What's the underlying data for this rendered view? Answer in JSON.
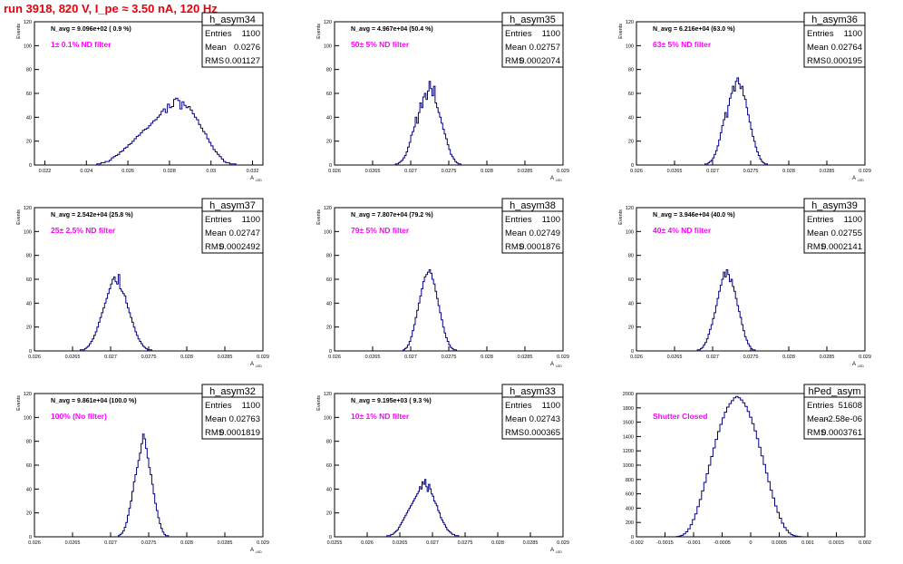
{
  "run_title": "run 3918,   820 V, I_pe ≈ 3.50 nA, 120 Hz",
  "style": {
    "title_color": "#e8000c",
    "filter_label_color": "#ff00ff",
    "histogram_color": "#00007f",
    "axis_color": "#000000"
  },
  "chart_data": [
    {
      "type": "histogram",
      "name": "h_asym34",
      "stats": {
        "entries_label": "Entries",
        "entries": "1100",
        "mean_label": "Mean",
        "mean": "0.0276",
        "rms_label": "RMS",
        "rms": "0.001127"
      },
      "navg_text": "N_avg = 9.096e+02 ( 0.9 %)",
      "filter_text": "1± 0.1% ND filter",
      "xlabel": "A",
      "xlabel_sub": "LED",
      "ylabel": "Events",
      "xlim": [
        0.0215,
        0.0325
      ],
      "ylim": [
        0,
        120
      ],
      "xticks": [
        "0.022",
        "0.024",
        "0.026",
        "0.028",
        "0.03",
        "0.032"
      ],
      "xtick_values": [
        0.022,
        0.024,
        0.026,
        0.028,
        0.03,
        0.032
      ],
      "yticks": [
        0,
        20,
        40,
        60,
        80,
        100,
        120
      ],
      "bins": {
        "start": 0.0245,
        "width": 0.0001,
        "counts": [
          1,
          1,
          2,
          2,
          3,
          3,
          4,
          6,
          7,
          8,
          9,
          11,
          12,
          14,
          15,
          17,
          18,
          20,
          22,
          24,
          25,
          27,
          29,
          30,
          31,
          33,
          35,
          37,
          38,
          40,
          42,
          45,
          47,
          44,
          51,
          48,
          49,
          55,
          56,
          54,
          47,
          53,
          50,
          48,
          49,
          46,
          43,
          40,
          38,
          34,
          31,
          28,
          26,
          22,
          19,
          16,
          13,
          11,
          9,
          7,
          5,
          3,
          2,
          2,
          1,
          1,
          1
        ]
      }
    },
    {
      "type": "histogram",
      "name": "h_asym35",
      "stats": {
        "entries_label": "Entries",
        "entries": "1100",
        "mean_label": "Mean",
        "mean": "0.02757",
        "rms_label": "RMS",
        "rms": "0.0002074"
      },
      "navg_text": "N_avg = 4.967e+04 (50.4 %)",
      "filter_text": "50± 5% ND filter",
      "xlabel": "A",
      "xlabel_sub": "LED",
      "ylabel": "Events",
      "xlim": [
        0.026,
        0.029
      ],
      "ylim": [
        0,
        120
      ],
      "xticks": [
        "0.026",
        "0.0265",
        "0.027",
        "0.0275",
        "0.028",
        "0.0285",
        "0.029"
      ],
      "xtick_values": [
        0.026,
        0.0265,
        0.027,
        0.0275,
        0.028,
        0.0285,
        0.029
      ],
      "yticks": [
        0,
        20,
        40,
        60,
        80,
        100,
        120
      ],
      "bins": {
        "start": 0.0268,
        "width": 2e-05,
        "counts": [
          1,
          1,
          2,
          3,
          4,
          6,
          8,
          11,
          15,
          19,
          25,
          28,
          32,
          40,
          35,
          44,
          52,
          48,
          57,
          60,
          55,
          62,
          70,
          64,
          58,
          66,
          52,
          48,
          44,
          40,
          35,
          30,
          26,
          22,
          17,
          13,
          9,
          7,
          5,
          3,
          2,
          1,
          1
        ]
      }
    },
    {
      "type": "histogram",
      "name": "h_asym36",
      "stats": {
        "entries_label": "Entries",
        "entries": "1100",
        "mean_label": "Mean",
        "mean": "0.02764",
        "rms_label": "RMS",
        "rms": "0.000195"
      },
      "navg_text": "N_avg = 6.216e+04 (63.0 %)",
      "filter_text": "63± 5% ND filter",
      "xlabel": "A",
      "xlabel_sub": "LED",
      "ylabel": "Events",
      "xlim": [
        0.026,
        0.029
      ],
      "ylim": [
        0,
        120
      ],
      "xticks": [
        "0.026",
        "0.0265",
        "0.027",
        "0.0275",
        "0.028",
        "0.0285",
        "0.029"
      ],
      "xtick_values": [
        0.026,
        0.0265,
        0.027,
        0.0275,
        0.028,
        0.0285,
        0.029
      ],
      "yticks": [
        0,
        20,
        40,
        60,
        80,
        100,
        120
      ],
      "bins": {
        "start": 0.0269,
        "width": 2e-05,
        "counts": [
          1,
          1,
          2,
          3,
          4,
          6,
          9,
          12,
          16,
          21,
          27,
          33,
          38,
          44,
          40,
          50,
          56,
          60,
          66,
          62,
          70,
          73,
          68,
          64,
          66,
          58,
          55,
          48,
          42,
          36,
          30,
          24,
          20,
          15,
          11,
          8,
          5,
          3,
          2,
          1,
          1
        ]
      }
    },
    {
      "type": "histogram",
      "name": "h_asym37",
      "stats": {
        "entries_label": "Entries",
        "entries": "1100",
        "mean_label": "Mean",
        "mean": "0.02747",
        "rms_label": "RMS",
        "rms": "0.0002492"
      },
      "navg_text": "N_avg = 2.542e+04 (25.8 %)",
      "filter_text": "25± 2.5% ND filter",
      "xlabel": "A",
      "xlabel_sub": "LED",
      "ylabel": "Events",
      "xlim": [
        0.026,
        0.029
      ],
      "ylim": [
        0,
        120
      ],
      "xticks": [
        "0.026",
        "0.0265",
        "0.027",
        "0.0275",
        "0.028",
        "0.0285",
        "0.029"
      ],
      "xtick_values": [
        0.026,
        0.0265,
        0.027,
        0.0275,
        0.028,
        0.0285,
        0.029
      ],
      "yticks": [
        0,
        20,
        40,
        60,
        80,
        100,
        120
      ],
      "bins": {
        "start": 0.0266,
        "width": 2e-05,
        "counts": [
          1,
          1,
          1,
          2,
          3,
          4,
          6,
          8,
          10,
          13,
          16,
          20,
          24,
          28,
          32,
          36,
          40,
          44,
          48,
          52,
          56,
          60,
          62,
          58,
          56,
          64,
          52,
          50,
          48,
          46,
          40,
          36,
          32,
          28,
          24,
          20,
          16,
          13,
          10,
          8,
          6,
          4,
          3,
          2,
          1,
          1,
          1
        ]
      }
    },
    {
      "type": "histogram",
      "name": "h_asym38",
      "stats": {
        "entries_label": "Entries",
        "entries": "1100",
        "mean_label": "Mean",
        "mean": "0.02749",
        "rms_label": "RMS",
        "rms": "0.0001876"
      },
      "navg_text": "N_avg = 7.807e+04 (79.2 %)",
      "filter_text": "79± 5% ND filter",
      "xlabel": "A",
      "xlabel_sub": "LED",
      "ylabel": "Events",
      "xlim": [
        0.026,
        0.029
      ],
      "ylim": [
        0,
        120
      ],
      "xticks": [
        "0.026",
        "0.0265",
        "0.027",
        "0.0275",
        "0.028",
        "0.0285",
        "0.029"
      ],
      "xtick_values": [
        0.026,
        0.0265,
        0.027,
        0.0275,
        0.028,
        0.0285,
        0.029
      ],
      "yticks": [
        0,
        20,
        40,
        60,
        80,
        100,
        120
      ],
      "bins": {
        "start": 0.0269,
        "width": 2e-05,
        "counts": [
          1,
          2,
          3,
          5,
          8,
          12,
          17,
          22,
          28,
          34,
          40,
          46,
          52,
          58,
          62,
          64,
          66,
          68,
          65,
          60,
          56,
          50,
          44,
          38,
          32,
          26,
          20,
          15,
          11,
          8,
          5,
          3,
          2,
          1,
          1
        ]
      }
    },
    {
      "type": "histogram",
      "name": "h_asym39",
      "stats": {
        "entries_label": "Entries",
        "entries": "1100",
        "mean_label": "Mean",
        "mean": "0.02755",
        "rms_label": "RMS",
        "rms": "0.0002141"
      },
      "navg_text": "N_avg = 3.946e+04 (40.0 %)",
      "filter_text": "40± 4% ND filter",
      "xlabel": "A",
      "xlabel_sub": "LED",
      "ylabel": "Events",
      "xlim": [
        0.026,
        0.029
      ],
      "ylim": [
        0,
        120
      ],
      "xticks": [
        "0.026",
        "0.0265",
        "0.027",
        "0.0275",
        "0.028",
        "0.0285",
        "0.029"
      ],
      "xtick_values": [
        0.026,
        0.0265,
        0.027,
        0.0275,
        0.028,
        0.0285,
        0.029
      ],
      "yticks": [
        0,
        20,
        40,
        60,
        80,
        100,
        120
      ],
      "bins": {
        "start": 0.0268,
        "width": 2e-05,
        "counts": [
          1,
          1,
          2,
          3,
          5,
          7,
          10,
          14,
          18,
          22,
          27,
          32,
          38,
          44,
          50,
          55,
          60,
          66,
          62,
          68,
          64,
          58,
          60,
          54,
          50,
          44,
          38,
          33,
          28,
          22,
          17,
          12,
          9,
          6,
          4,
          2,
          1,
          1
        ]
      }
    },
    {
      "type": "histogram",
      "name": "h_asym32",
      "stats": {
        "entries_label": "Entries",
        "entries": "1100",
        "mean_label": "Mean",
        "mean": "0.02763",
        "rms_label": "RMS",
        "rms": "0.0001819"
      },
      "navg_text": "N_avg = 9.861e+04 (100.0 %)",
      "filter_text": "100% (No filter)",
      "xlabel": "A",
      "xlabel_sub": "LED",
      "ylabel": "Events",
      "xlim": [
        0.026,
        0.029
      ],
      "ylim": [
        0,
        120
      ],
      "xticks": [
        "0.026",
        "0.0265",
        "0.027",
        "0.0275",
        "0.028",
        "0.0285",
        "0.029"
      ],
      "xtick_values": [
        0.026,
        0.0265,
        0.027,
        0.0275,
        0.028,
        0.0285,
        0.029
      ],
      "yticks": [
        0,
        20,
        40,
        60,
        80,
        100,
        120
      ],
      "bins": {
        "start": 0.0271,
        "width": 2e-05,
        "counts": [
          1,
          2,
          3,
          5,
          8,
          12,
          18,
          24,
          30,
          38,
          46,
          52,
          58,
          64,
          70,
          78,
          86,
          82,
          74,
          66,
          58,
          52,
          44,
          36,
          28,
          22,
          16,
          11,
          7,
          4,
          2,
          1,
          1
        ]
      }
    },
    {
      "type": "histogram",
      "name": "h_asym33",
      "stats": {
        "entries_label": "Entries",
        "entries": "1100",
        "mean_label": "Mean",
        "mean": "0.02743",
        "rms_label": "RMS",
        "rms": "0.000365"
      },
      "navg_text": "N_avg = 9.195e+03 ( 9.3 %)",
      "filter_text": "10± 1% ND filter",
      "xlabel": "A",
      "xlabel_sub": "LED",
      "ylabel": "Events",
      "xlim": [
        0.0255,
        0.029
      ],
      "ylim": [
        0,
        120
      ],
      "xticks": [
        "0.0255",
        "0.026",
        "0.0265",
        "0.027",
        "0.0275",
        "0.028",
        "0.0285",
        "0.029"
      ],
      "xtick_values": [
        0.0255,
        0.026,
        0.0265,
        0.027,
        0.0275,
        0.028,
        0.0285,
        0.029
      ],
      "yticks": [
        0,
        20,
        40,
        60,
        80,
        100,
        120
      ],
      "bins": {
        "start": 0.0263,
        "width": 2e-05,
        "counts": [
          1,
          1,
          1,
          2,
          2,
          3,
          4,
          5,
          6,
          8,
          10,
          12,
          14,
          16,
          18,
          20,
          22,
          24,
          26,
          28,
          30,
          32,
          34,
          36,
          38,
          42,
          40,
          46,
          44,
          48,
          42,
          38,
          44,
          40,
          36,
          34,
          30,
          28,
          26,
          22,
          20,
          16,
          14,
          12,
          10,
          8,
          6,
          5,
          4,
          3,
          2,
          2,
          1,
          1,
          1
        ]
      }
    },
    {
      "type": "histogram",
      "name": "hPed_asym",
      "stats": {
        "entries_label": "Entries",
        "entries": "51608",
        "mean_label": "Mean",
        "mean": "-2.58e-06",
        "rms_label": "RMS",
        "rms": "0.0003761"
      },
      "navg_text": "",
      "filter_text": "Shutter Closed",
      "xlabel": "",
      "xlabel_sub": "",
      "ylabel": "",
      "xlim": [
        -0.002,
        0.002
      ],
      "ylim": [
        0,
        2000
      ],
      "xticks": [
        "-0.002",
        "-0.0015",
        "-0.001",
        "-0.0005",
        "0",
        "0.0005",
        "0.001",
        "0.0015",
        "0.002"
      ],
      "xtick_values": [
        -0.002,
        -0.0015,
        -0.001,
        -0.0005,
        0,
        0.0005,
        0.001,
        0.0015,
        0.002
      ],
      "yticks": [
        0,
        200,
        400,
        600,
        800,
        1000,
        1200,
        1400,
        1600,
        1800,
        2000
      ],
      "bins": {
        "start": -0.0013,
        "width": 4e-05,
        "counts": [
          5,
          10,
          20,
          40,
          70,
          110,
          170,
          240,
          320,
          420,
          520,
          640,
          760,
          880,
          1000,
          1120,
          1240,
          1360,
          1470,
          1570,
          1660,
          1740,
          1810,
          1860,
          1900,
          1940,
          1960,
          1940,
          1910,
          1870,
          1820,
          1750,
          1670,
          1580,
          1480,
          1370,
          1250,
          1130,
          1010,
          890,
          770,
          650,
          540,
          430,
          340,
          260,
          190,
          130,
          90,
          55,
          30,
          18,
          10,
          5,
          2
        ]
      }
    }
  ]
}
